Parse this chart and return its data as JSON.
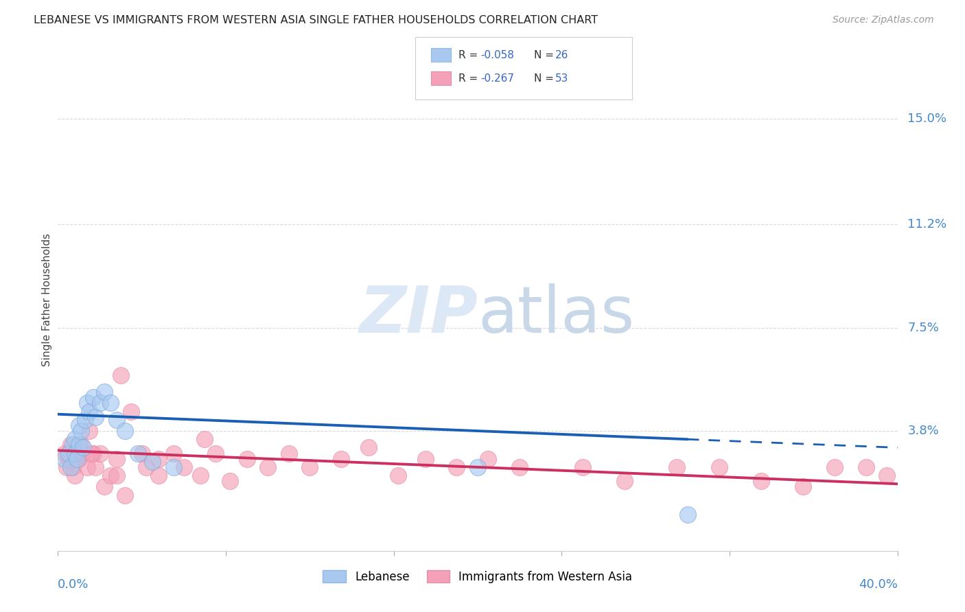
{
  "title": "LEBANESE VS IMMIGRANTS FROM WESTERN ASIA SINGLE FATHER HOUSEHOLDS CORRELATION CHART",
  "source": "Source: ZipAtlas.com",
  "ylabel": "Single Father Households",
  "ytick_labels": [
    "15.0%",
    "11.2%",
    "7.5%",
    "3.8%"
  ],
  "ytick_values": [
    0.15,
    0.112,
    0.075,
    0.038
  ],
  "xlim": [
    0.0,
    0.4
  ],
  "ylim": [
    -0.005,
    0.175
  ],
  "background_color": "#ffffff",
  "grid_color": "#d8d8d8",
  "color_blue": "#a8c8f0",
  "color_pink": "#f4a0b8",
  "line_blue": "#1a5fb4",
  "line_pink": "#cc3060",
  "watermark_color": "#dce8f5",
  "blue_scatter_x": [
    0.003,
    0.005,
    0.006,
    0.007,
    0.008,
    0.008,
    0.009,
    0.01,
    0.01,
    0.011,
    0.012,
    0.013,
    0.014,
    0.015,
    0.017,
    0.018,
    0.02,
    0.022,
    0.025,
    0.028,
    0.032,
    0.038,
    0.045,
    0.055,
    0.2,
    0.3
  ],
  "blue_scatter_y": [
    0.028,
    0.03,
    0.025,
    0.033,
    0.03,
    0.035,
    0.028,
    0.04,
    0.033,
    0.038,
    0.032,
    0.042,
    0.048,
    0.045,
    0.05,
    0.043,
    0.048,
    0.052,
    0.048,
    0.042,
    0.038,
    0.03,
    0.027,
    0.025,
    0.025,
    0.008
  ],
  "pink_scatter_x": [
    0.003,
    0.004,
    0.005,
    0.006,
    0.007,
    0.008,
    0.009,
    0.01,
    0.011,
    0.012,
    0.014,
    0.015,
    0.017,
    0.018,
    0.02,
    0.022,
    0.025,
    0.028,
    0.03,
    0.035,
    0.04,
    0.042,
    0.048,
    0.055,
    0.06,
    0.068,
    0.075,
    0.082,
    0.09,
    0.1,
    0.11,
    0.12,
    0.135,
    0.148,
    0.162,
    0.175,
    0.19,
    0.205,
    0.22,
    0.25,
    0.27,
    0.295,
    0.315,
    0.335,
    0.355,
    0.37,
    0.385,
    0.395,
    0.048,
    0.07,
    0.032,
    0.028,
    0.016
  ],
  "pink_scatter_y": [
    0.03,
    0.025,
    0.028,
    0.033,
    0.025,
    0.022,
    0.03,
    0.028,
    0.033,
    0.03,
    0.025,
    0.038,
    0.03,
    0.025,
    0.03,
    0.018,
    0.022,
    0.028,
    0.058,
    0.045,
    0.03,
    0.025,
    0.028,
    0.03,
    0.025,
    0.022,
    0.03,
    0.02,
    0.028,
    0.025,
    0.03,
    0.025,
    0.028,
    0.032,
    0.022,
    0.028,
    0.025,
    0.028,
    0.025,
    0.025,
    0.02,
    0.025,
    0.025,
    0.02,
    0.018,
    0.025,
    0.025,
    0.022,
    0.022,
    0.035,
    0.015,
    0.022,
    0.03
  ],
  "blue_line_x0": 0.0,
  "blue_line_x1": 0.4,
  "blue_line_y0": 0.044,
  "blue_line_y1": 0.032,
  "blue_line_solid_end": 0.3,
  "pink_line_x0": 0.0,
  "pink_line_x1": 0.4,
  "pink_line_y0": 0.031,
  "pink_line_y1": 0.019,
  "pink_line_solid_end": 0.395
}
